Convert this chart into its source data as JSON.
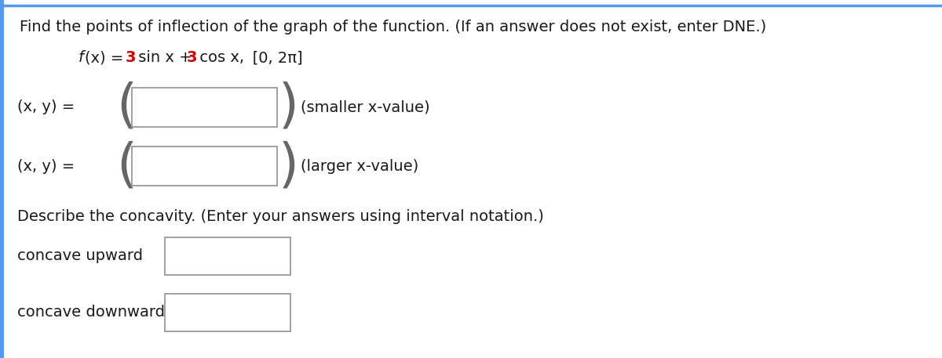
{
  "title_line": "Find the points of inflection of the graph of the function. (If an answer does not exist, enter DNE.)",
  "func_italic": "f",
  "func_rest": "(x) = ",
  "func_3a": "3",
  "func_sinx": " sin x + ",
  "func_3b": "3",
  "func_cosx": " cos x,",
  "func_interval": "   [0, 2π]",
  "xy_label": "(x, y) =",
  "smaller_label": "(smaller x-value)",
  "larger_label": "(larger x-value)",
  "concavity_title": "Describe the concavity. (Enter your answers using interval notation.)",
  "concave_upward": "concave upward",
  "concave_downward": "concave downward",
  "bg_color": "#ffffff",
  "text_color": "#1a1a1a",
  "red_color": "#cc0000",
  "box_edge_color": "#999999",
  "box_bg": "#ffffff",
  "border_left_color": "#5599ee",
  "title_fontsize": 14,
  "body_fontsize": 14,
  "paren_fontsize": 48,
  "paren_color": "#666666",
  "fig_width": 12.0,
  "fig_height": 4.57,
  "dpi": 100
}
